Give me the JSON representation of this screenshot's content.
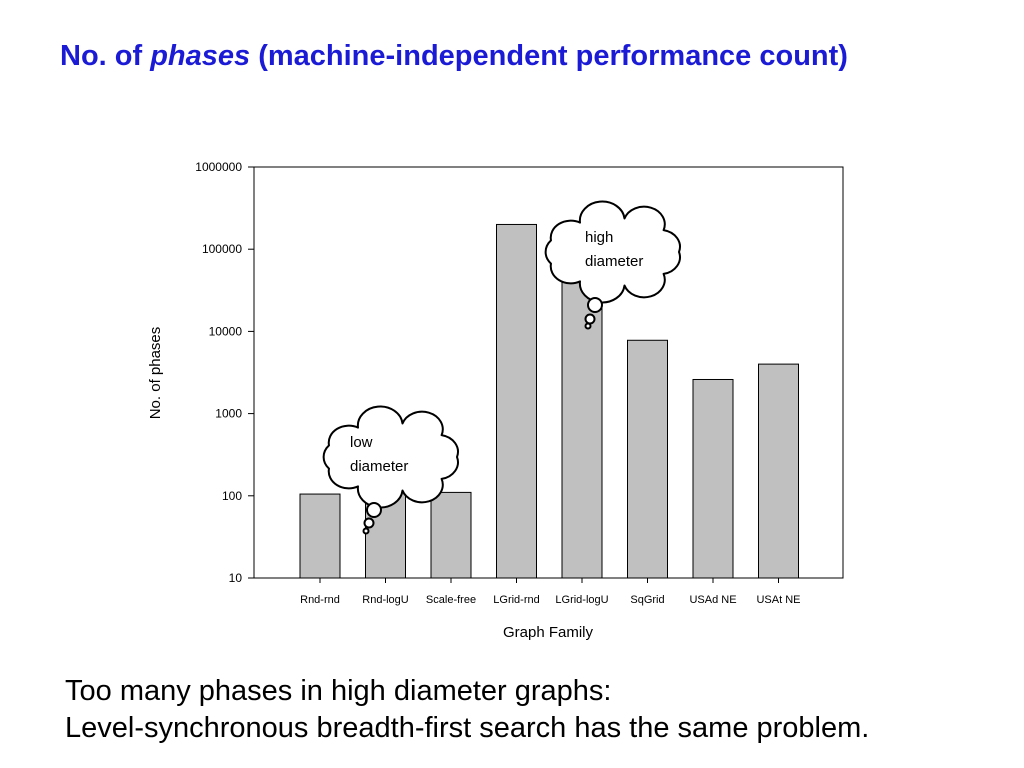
{
  "title": {
    "prefix": "No. of ",
    "emphasis": "phases",
    "suffix": " (machine-independent performance count)",
    "color": "#1b1bd6"
  },
  "chart_data": {
    "type": "bar",
    "title": "",
    "xlabel": "Graph Family",
    "ylabel": "No. of phases",
    "yscale": "log",
    "ylim": [
      10,
      1000000
    ],
    "yticks": [
      10,
      100,
      1000,
      10000,
      100000,
      1000000
    ],
    "ytick_labels": [
      "10",
      "100",
      "1000",
      "10000",
      "100000",
      "1000000"
    ],
    "categories": [
      "Rnd-rnd",
      "Rnd-logU",
      "Scale-free",
      "LGrid-rnd",
      "LGrid-logU",
      "SqGrid",
      "USAd NE",
      "USAt NE"
    ],
    "values": [
      105,
      110,
      110,
      200000,
      100000,
      7800,
      2600,
      4000
    ],
    "bar_color": "#c0c0c0",
    "grid": false,
    "legend": "none",
    "annotations": [
      {
        "lines": [
          "high",
          "diameter"
        ],
        "category": "LGrid-logU"
      },
      {
        "lines": [
          "low",
          "diameter"
        ],
        "category": "Rnd-logU"
      }
    ]
  },
  "caption": {
    "line1": "Too many phases in high diameter graphs:",
    "line2": "Level-synchronous breadth-first search has the same problem."
  }
}
